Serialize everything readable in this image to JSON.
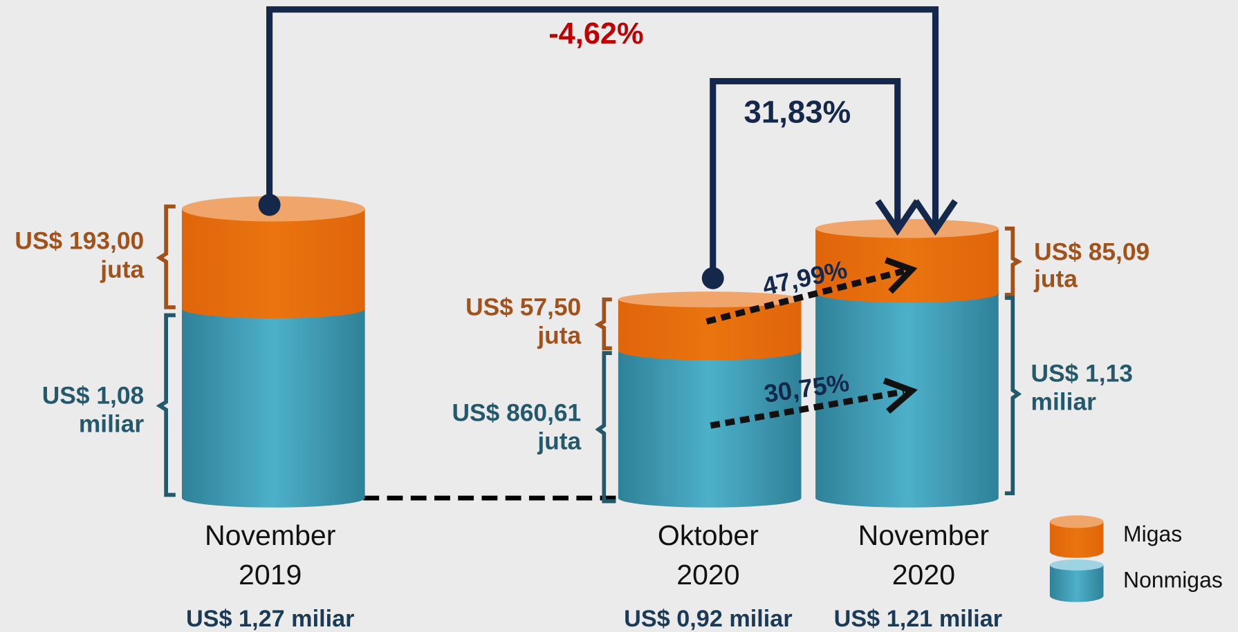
{
  "columns": [
    {
      "period": [
        "November",
        "2019"
      ],
      "total": "US$ 1,27 miliar",
      "migas": [
        "US$ 193,00",
        "juta"
      ],
      "nonmigas": [
        "US$ 1,08",
        "miliar"
      ]
    },
    {
      "period": [
        "Oktober",
        "2020"
      ],
      "total": "US$ 0,92 miliar",
      "migas": [
        "US$ 57,50",
        "juta"
      ],
      "nonmigas": [
        "US$ 860,61",
        "juta"
      ]
    },
    {
      "period": [
        "November",
        "2020"
      ],
      "total": "US$ 1,21 miliar",
      "migas": [
        "US$ 85,09",
        "juta"
      ],
      "nonmigas": [
        "US$ 1,13",
        "miliar"
      ]
    }
  ],
  "changes": [
    "-4,62%",
    "31,83%",
    "47,99%",
    "30,75%"
  ],
  "legend": [
    "Migas",
    "Nonmigas"
  ]
}
